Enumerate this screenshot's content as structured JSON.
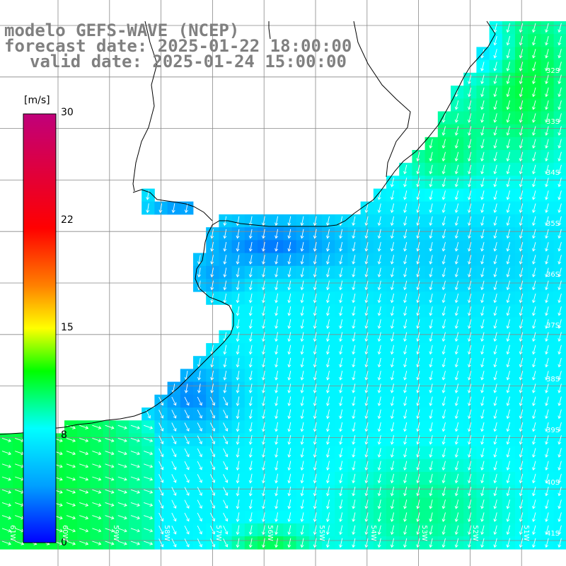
{
  "title": {
    "model": "modelo GEFS-WAVE (NCEP)",
    "forecast_date": "forecast date: 2025-01-22 18:00:00",
    "valid_date": "valid date: 2025-01-24 15:00:00"
  },
  "colorbar": {
    "unit": "[m/s]",
    "ticks": [
      {
        "value": 30,
        "label": "30"
      },
      {
        "value": 22,
        "label": "22"
      },
      {
        "value": 15,
        "label": "15"
      },
      {
        "value": 8,
        "label": "8"
      },
      {
        "value": 0,
        "label": "0"
      }
    ],
    "range": [
      0,
      30
    ],
    "stops": [
      {
        "value": 0,
        "color": "#0000ff"
      },
      {
        "value": 4,
        "color": "#00a0ff"
      },
      {
        "value": 8,
        "color": "#00ffff"
      },
      {
        "value": 12,
        "color": "#00ff00"
      },
      {
        "value": 15,
        "color": "#ffff00"
      },
      {
        "value": 18,
        "color": "#ff8000"
      },
      {
        "value": 22,
        "color": "#ff0000"
      },
      {
        "value": 30,
        "color": "#c0007a"
      }
    ]
  },
  "map": {
    "region": "Rio de la Plata / South Atlantic",
    "lon_range": [
      -61.5,
      -50.5
    ],
    "lat_range": [
      -41.5,
      -30.5
    ],
    "lat_labels": [
      "32S",
      "33S",
      "34S",
      "35S",
      "36S",
      "37S",
      "38S",
      "39S",
      "40S",
      "41S"
    ],
    "lon_labels": [
      "61W",
      "60W",
      "59W",
      "58W",
      "57W",
      "56W",
      "55W",
      "54W",
      "53W",
      "52W",
      "51W"
    ],
    "grid": true,
    "land_color": "#ffffff",
    "coastline_color": "#000000",
    "arrow_color": "#ffffff",
    "wind_direction": "from NNE (arrows pointing SSW)"
  }
}
